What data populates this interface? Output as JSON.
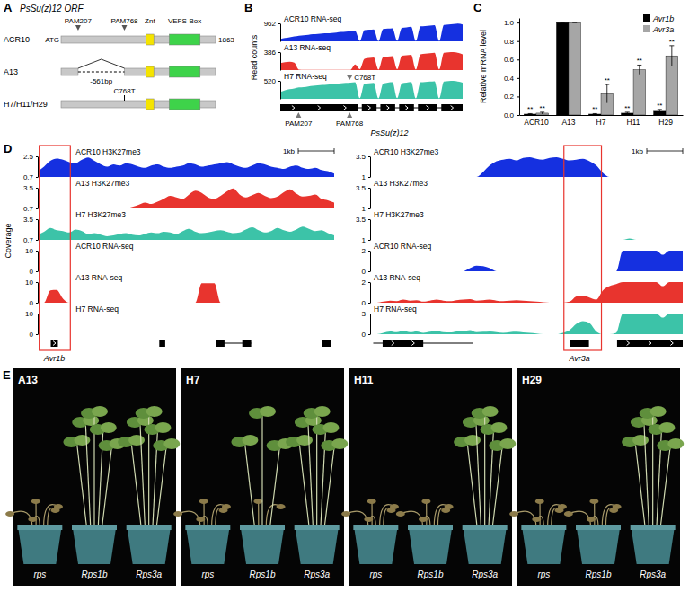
{
  "chart_data": [
    {
      "type": "area",
      "title": "ACR10 RNA-seq",
      "color": "#1530e0",
      "ylim": [
        0,
        962
      ],
      "yticks": [
        962
      ],
      "values": [
        120,
        180,
        220,
        260,
        300,
        320,
        350,
        380,
        400,
        420,
        430,
        450,
        470,
        500,
        520,
        540,
        560,
        20,
        600,
        620,
        640,
        10,
        660,
        680,
        700,
        30,
        720,
        750,
        780,
        20,
        800,
        820,
        840,
        860,
        20,
        880,
        900,
        920,
        950,
        900
      ]
    },
    {
      "type": "area",
      "title": "A13 RNA-seq",
      "color": "#e8342e",
      "ylim": [
        0,
        386
      ],
      "yticks": [
        386
      ],
      "values": [
        150,
        170,
        180,
        160,
        10,
        5,
        5,
        5,
        5,
        5,
        5,
        5,
        5,
        5,
        5,
        5,
        120,
        20,
        240,
        260,
        270,
        10,
        280,
        290,
        300,
        20,
        310,
        320,
        330,
        15,
        340,
        350,
        360,
        370,
        15,
        370,
        380,
        386,
        370,
        340
      ]
    },
    {
      "type": "area",
      "title": "H7 RNA-seq",
      "color": "#3cc3a8",
      "ylim": [
        0,
        520
      ],
      "yticks": [
        520
      ],
      "values": [
        200,
        250,
        280,
        300,
        330,
        340,
        360,
        380,
        390,
        400,
        410,
        420,
        440,
        450,
        460,
        470,
        480,
        20,
        440,
        450,
        460,
        15,
        440,
        470,
        480,
        20,
        450,
        470,
        490,
        15,
        480,
        490,
        500,
        510,
        15,
        500,
        515,
        520,
        500,
        470
      ]
    },
    {
      "type": "bar",
      "ylabel": "Relative mRNA level",
      "categories": [
        "ACR10",
        "A13",
        "H7",
        "H11",
        "H29"
      ],
      "series": [
        {
          "name": "Avr1b",
          "color": "#000000",
          "values": [
            0.01,
            1,
            0.01,
            0.02,
            0.04
          ],
          "errors": [
            0.005,
            0,
            0.005,
            0.01,
            0.02
          ],
          "labels": [
            "**",
            null,
            "**",
            "**",
            "**"
          ]
        },
        {
          "name": "Avr3a",
          "color": "#a6a6a6",
          "values": [
            0.02,
            1,
            0.23,
            0.49,
            0.64
          ],
          "errors": [
            0.01,
            0,
            0.1,
            0.05,
            0.11
          ],
          "labels": [
            "**",
            null,
            "**",
            "**",
            "**"
          ]
        }
      ],
      "ylim": [
        0,
        1.05
      ],
      "yticks": [
        {
          "value": 0,
          "label": "0.0"
        },
        0.2,
        0.4,
        0.6,
        0.8,
        {
          "value": 1,
          "label": "1.0"
        }
      ],
      "legend": "top-right",
      "grid": false
    },
    {
      "type": "area",
      "title": "ACR10 H3K27me3",
      "color": "#1530e0",
      "ylim": [
        0.7,
        2.5
      ],
      "yticks": [
        0.7,
        2.5
      ],
      "values": [
        1.2,
        1.6,
        2.1,
        2.3,
        2.2,
        2.0,
        1.9,
        2.2,
        2.4,
        2.1,
        1.8,
        1.6,
        1.8,
        1.7,
        1.9,
        1.8,
        1.6,
        1.5,
        1.7,
        1.8,
        1.6,
        1.5,
        1.6,
        1.7,
        1.9,
        1.8,
        1.6,
        1.7,
        1.8,
        1.9,
        2.0,
        1.8,
        1.6,
        1.5,
        1.7,
        1.9,
        1.8,
        1.6,
        1.5,
        1.4,
        1.6,
        1.7,
        1.5,
        1.4,
        1.5,
        1.3,
        1.2,
        1.0
      ]
    },
    {
      "type": "area",
      "title": "A13 H3K27me3",
      "color": "#e8342e",
      "ylim": [
        0.7,
        3.5
      ],
      "yticks": [
        0.7,
        3.5
      ],
      "values": [
        0.7,
        0.7,
        0.7,
        0.7,
        0.7,
        0.7,
        0.7,
        0.7,
        0.7,
        0.7,
        0.7,
        0.7,
        0.7,
        0.7,
        0.7,
        0.9,
        1.2,
        1.5,
        1.3,
        1.6,
        2.0,
        2.4,
        2.2,
        2.0,
        2.6,
        3.1,
        2.8,
        2.2,
        2.0,
        2.4,
        3.0,
        3.4,
        2.6,
        2.2,
        2.5,
        2.8,
        2.4,
        2.1,
        2.3,
        2.9,
        3.3,
        2.7,
        2.3,
        2.4,
        2.6,
        2.0,
        1.8,
        1.5
      ]
    },
    {
      "type": "area",
      "title": "H7 H3K27me3",
      "color": "#3cc3a8",
      "ylim": [
        0.7,
        3.5
      ],
      "yticks": [
        0.7,
        3.5
      ],
      "values": [
        1.4,
        1.8,
        2.3,
        2.0,
        1.9,
        1.7,
        2.1,
        1.9,
        1.5,
        1.6,
        1.4,
        1.2,
        1.3,
        1.5,
        1.6,
        1.4,
        1.3,
        1.5,
        1.7,
        1.6,
        1.8,
        1.7,
        1.5,
        1.9,
        2.2,
        1.8,
        1.6,
        1.7,
        1.9,
        2.0,
        1.8,
        1.6,
        1.7,
        2.1,
        2.4,
        2.0,
        1.7,
        1.9,
        2.3,
        2.0,
        1.8,
        2.1,
        2.5,
        2.2,
        1.9,
        2.0,
        1.6,
        1.3
      ]
    },
    {
      "type": "area",
      "title": "ACR10 RNA-seq",
      "color": "#1530e0",
      "ylim": [
        0,
        10
      ],
      "yticks": [
        0,
        10
      ],
      "values": [
        0,
        0,
        0,
        0,
        0,
        0,
        0,
        0,
        0,
        0,
        0,
        0,
        0,
        0,
        0,
        0,
        0,
        0,
        0,
        0,
        0,
        0,
        0,
        0,
        0,
        0,
        0,
        0,
        0,
        0,
        0,
        0,
        0,
        0,
        0,
        0,
        0,
        0,
        0,
        0,
        0,
        0,
        0,
        0,
        0,
        0,
        0,
        0
      ]
    },
    {
      "type": "area",
      "title": "A13 RNA-seq",
      "color": "#e8342e",
      "ylim": [
        0,
        10
      ],
      "yticks": [
        0,
        10
      ],
      "values": [
        0,
        0,
        6,
        6.2,
        2,
        0,
        0,
        0,
        0,
        0,
        0,
        0,
        0,
        0,
        0,
        0,
        0,
        0,
        0,
        0,
        0,
        0,
        0,
        0,
        0,
        0,
        9.5,
        9.5,
        9.5,
        0,
        0,
        0,
        0,
        0,
        0,
        0,
        0,
        0,
        0,
        0,
        0,
        0,
        0,
        0,
        0,
        0,
        0,
        0
      ]
    },
    {
      "type": "area",
      "title": "H7 RNA-seq",
      "color": "#3cc3a8",
      "ylim": [
        0,
        10
      ],
      "yticks": [
        0,
        10
      ],
      "values": [
        0,
        0,
        0,
        0,
        0,
        0,
        0,
        0,
        0,
        0,
        0,
        0,
        0,
        0,
        0,
        0,
        0,
        0,
        0,
        0,
        0,
        0,
        0,
        0,
        0,
        0,
        0,
        0,
        0,
        0,
        0,
        0,
        0,
        0,
        0,
        0,
        0,
        0,
        0,
        0,
        0,
        0,
        0,
        0,
        0,
        0,
        0,
        0
      ]
    },
    {
      "type": "area",
      "title": "ACR10 H3K27me3",
      "color": "#1530e0",
      "ylim": [
        1,
        3.5
      ],
      "yticks": [
        1,
        3.5
      ],
      "values": [
        1,
        1,
        1,
        1,
        1,
        1,
        1,
        1,
        1,
        1,
        1,
        1,
        1,
        1,
        1,
        1,
        1,
        1.6,
        2.4,
        2.9,
        3.1,
        3.2,
        3.0,
        3.3,
        3.4,
        3.2,
        3.1,
        3.3,
        3.4,
        3.2,
        3.0,
        3.1,
        3.2,
        2.9,
        2.4,
        1.5,
        1,
        1,
        1,
        1,
        1,
        1,
        1,
        1,
        1,
        1,
        1,
        1
      ]
    },
    {
      "type": "area",
      "title": "A13 H3K27me3",
      "color": "#e8342e",
      "ylim": [
        1,
        3.5
      ],
      "yticks": [
        1,
        3.5
      ],
      "values": [
        1,
        1,
        1,
        1,
        1,
        1,
        1,
        1,
        1,
        1,
        1,
        1,
        1,
        1,
        1,
        1,
        1,
        1,
        1,
        1,
        1,
        1,
        1,
        1,
        1,
        1,
        1,
        1,
        1,
        1,
        1,
        1,
        1,
        1,
        1,
        1,
        1,
        1,
        1,
        1,
        1,
        1,
        1,
        1,
        1,
        1,
        1,
        1
      ]
    },
    {
      "type": "area",
      "title": "H7 H3K27me3",
      "color": "#3cc3a8",
      "ylim": [
        1,
        3.5
      ],
      "yticks": [
        1,
        3.5
      ],
      "values": [
        1,
        1,
        1,
        1,
        1,
        1,
        1,
        1,
        1,
        1,
        1,
        1,
        1,
        1,
        1,
        1,
        1,
        1,
        1,
        1,
        1,
        1,
        1,
        1,
        1,
        1,
        1,
        1,
        1,
        1,
        1,
        1,
        1,
        1,
        1,
        1,
        1,
        1,
        1,
        1.15,
        1,
        1,
        1,
        1,
        1,
        1,
        1,
        1
      ]
    },
    {
      "type": "area",
      "title": "ACR10 RNA-seq",
      "color": "#1530e0",
      "ylim": [
        0,
        2
      ],
      "yticks": [
        0,
        2
      ],
      "values": [
        0,
        0,
        0,
        0,
        0,
        0,
        0,
        0,
        0,
        0,
        0,
        0,
        0,
        0,
        0,
        0.3,
        0.55,
        0.5,
        0.3,
        0,
        0,
        0,
        0,
        0,
        0,
        0,
        0,
        0,
        0,
        0,
        0,
        0,
        0,
        0,
        0,
        0,
        0,
        0,
        2,
        2,
        2,
        2,
        2,
        2,
        1.6,
        2,
        2,
        2
      ]
    },
    {
      "type": "area",
      "title": "A13 RNA-seq",
      "color": "#e8342e",
      "ylim": [
        0,
        2
      ],
      "yticks": [
        0,
        2
      ],
      "values": [
        0,
        0,
        0.1,
        0.2,
        0.15,
        0.3,
        0.2,
        0.25,
        0.1,
        0.2,
        0.3,
        0.2,
        0.15,
        0.25,
        0.3,
        0.35,
        0.2,
        0.25,
        0.3,
        0.2,
        0.15,
        0.2,
        0.25,
        0.2,
        0.15,
        0.1,
        0.05,
        0,
        0,
        0,
        0.1,
        0.6,
        0.7,
        0.5,
        0.3,
        1.2,
        1.6,
        1.8,
        2,
        2,
        2,
        2,
        2,
        2,
        1.6,
        2,
        2,
        2
      ]
    },
    {
      "type": "area",
      "title": "H7 RNA-seq",
      "color": "#3cc3a8",
      "ylim": [
        0,
        3
      ],
      "yticks": [
        0,
        3
      ],
      "values": [
        0,
        0,
        0.2,
        0.4,
        0.3,
        0.5,
        0.3,
        0.4,
        0.2,
        0.35,
        0.5,
        0.3,
        0.25,
        0.4,
        0.45,
        0.6,
        0.3,
        0.35,
        0.4,
        0.3,
        0.2,
        0.3,
        0.35,
        0.25,
        0.2,
        0.1,
        0,
        0,
        0,
        0.2,
        0.6,
        1.5,
        1.9,
        1.6,
        0.4,
        0,
        0,
        0.2,
        3,
        3,
        3,
        3,
        3,
        3,
        2.4,
        3,
        3,
        3
      ]
    }
  ],
  "figure": {
    "panel_labels": [
      "A",
      "B",
      "C",
      "D",
      "E"
    ],
    "a": {
      "title": "PsSu(z)12 ORF",
      "rows": [
        "ACR10",
        "A13",
        "H7/H11/H29"
      ],
      "start": "ATG",
      "end": "1863",
      "sites": [
        "PAM207",
        "PAM768"
      ],
      "domains": [
        "Znf",
        "VEFS-Box"
      ],
      "deletion": "-561bp",
      "mutation": "C768T"
    },
    "b": {
      "ylabel": "Read counts",
      "gene": "PsSu(z)12",
      "sites": [
        "PAM207",
        "PAM768"
      ],
      "mutation": "C768T"
    },
    "d": {
      "ylabel": "Coverage",
      "scale": "1kb",
      "genes": [
        "Avr1b",
        "Avr3a"
      ]
    },
    "e": {
      "panels": [
        "A13",
        "H7",
        "H11",
        "H29"
      ],
      "pots": [
        "rps",
        "Rps1b",
        "Rps3a"
      ]
    }
  }
}
